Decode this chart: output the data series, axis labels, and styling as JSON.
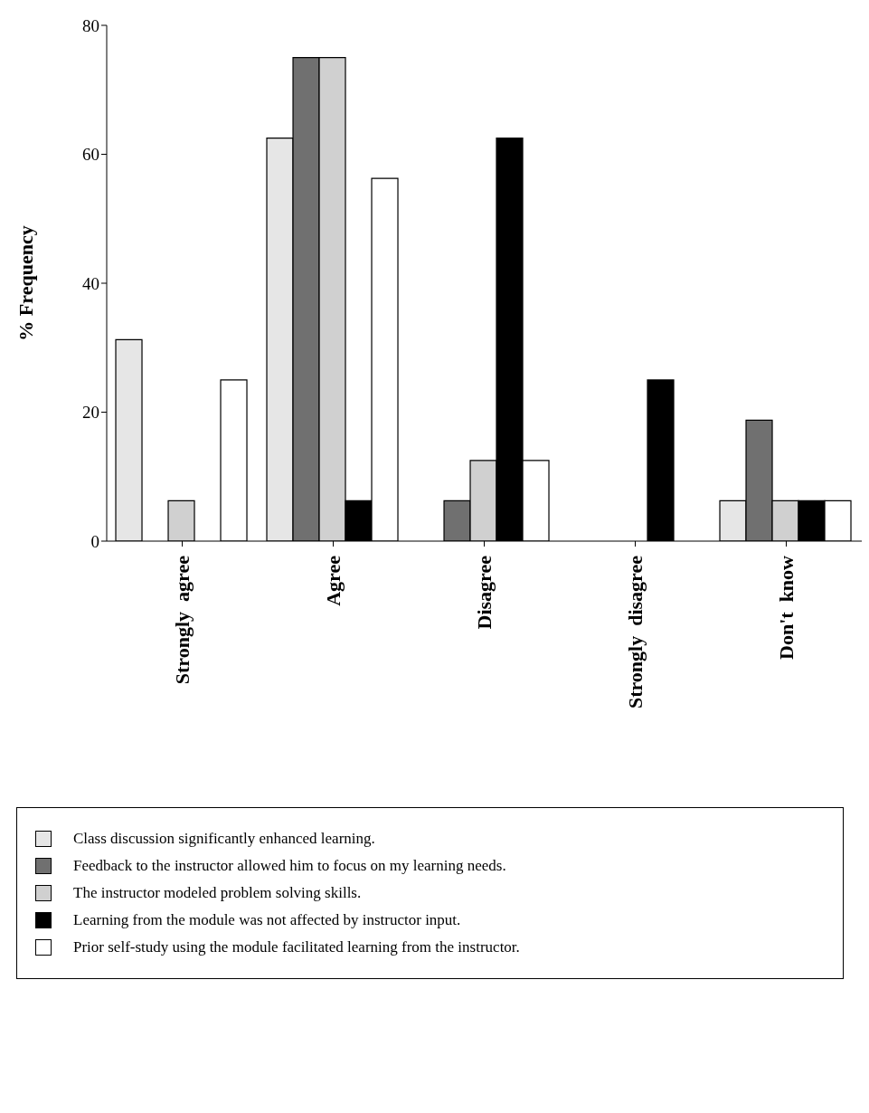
{
  "chart_data": {
    "type": "bar",
    "ylabel": "% Frequency",
    "categories": [
      "Strongly  agree",
      "Agree",
      "Disagree",
      "Strongly  disagree",
      "Don't  know"
    ],
    "series": [
      {
        "name": "Class discussion significantly enhanced learning.",
        "color": "#e6e6e6",
        "values": [
          31.25,
          62.5,
          0,
          0,
          6.25
        ]
      },
      {
        "name": "Feedback to the instructor allowed him to focus on my learning needs.",
        "color": "#707070",
        "values": [
          0,
          75,
          6.25,
          0,
          18.75
        ]
      },
      {
        "name": "The instructor modeled problem solving skills.",
        "color": "#d0d0d0",
        "values": [
          6.25,
          75,
          12.5,
          0,
          6.25
        ]
      },
      {
        "name": "Learning from the module was not affected by instructor input.",
        "color": "#000000",
        "values": [
          0,
          6.25,
          62.5,
          25,
          6.25
        ]
      },
      {
        "name": "Prior self-study using the module facilitated learning from the instructor.",
        "color": "#ffffff",
        "values": [
          25,
          56.25,
          12.5,
          0,
          6.25
        ]
      }
    ],
    "ylim": [
      0,
      80
    ],
    "yticks": [
      0,
      20,
      40,
      60,
      80
    ],
    "legend": "bottom"
  }
}
